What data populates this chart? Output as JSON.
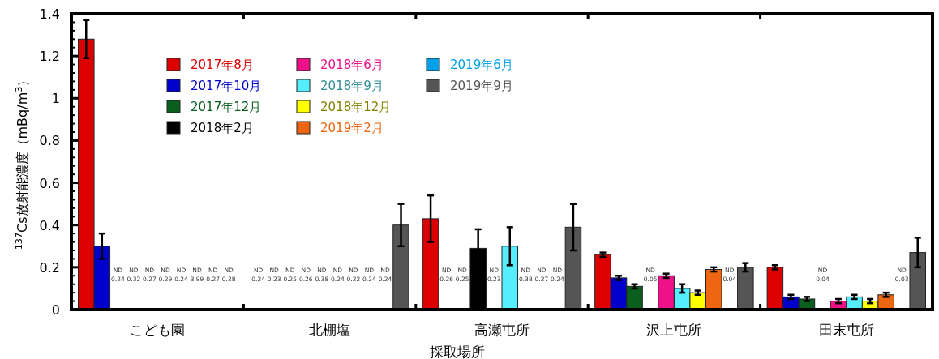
{
  "chart_data": {
    "type": "bar",
    "xlabel": "採取場所",
    "ylabel": "$^{137}$Cs放射能濃度（mBq/m$^{3}$）",
    "categories": [
      "こども園",
      "北棚塩",
      "高瀬屯所",
      "沢上屯所",
      "田末屯所"
    ],
    "ylim": [
      0,
      1.4
    ],
    "yticks": [
      0,
      0.2,
      0.4,
      0.6,
      0.8,
      1,
      1.2,
      1.4
    ],
    "legend": "top left",
    "series": [
      {
        "name": "2017年8月",
        "color": "#dd0000",
        "values": [
          1.28,
          null,
          0.43,
          0.26,
          0.2
        ],
        "errors": [
          0.09,
          null,
          0.11,
          0.01,
          0.01
        ],
        "value_labels": [
          null,
          "ND\n0.24",
          null,
          null,
          null
        ]
      },
      {
        "name": "2017年10月",
        "color": "#0000cc",
        "values": [
          0.3,
          null,
          null,
          0.15,
          0.06
        ],
        "errors": [
          0.06,
          null,
          null,
          0.01,
          0.01
        ],
        "value_labels": [
          null,
          "ND\n0.23",
          "ND\n0.26",
          null,
          null
        ]
      },
      {
        "name": "2017年12月",
        "color": "#0a5e1e",
        "values": [
          null,
          null,
          null,
          0.11,
          0.05
        ],
        "errors": [
          null,
          null,
          null,
          0.01,
          0.01
        ],
        "value_labels": [
          "ND\n0.24",
          "ND\n0.25",
          "ND\n0.25",
          null,
          null
        ]
      },
      {
        "name": "2018年2月",
        "color": "#000000",
        "values": [
          null,
          null,
          0.29,
          null,
          null
        ],
        "errors": [
          null,
          null,
          0.09,
          null,
          null
        ],
        "value_labels": [
          "ND\n0.32",
          "ND\n0.26",
          null,
          "ND\n0.05",
          "ND\n0.04"
        ]
      },
      {
        "name": "2018年6月",
        "color": "#ee1188",
        "values": [
          null,
          null,
          null,
          0.16,
          0.04
        ],
        "errors": [
          null,
          null,
          null,
          0.01,
          0.01
        ],
        "value_labels": [
          "ND\n0.27",
          "ND\n0.38",
          "ND\n0.23",
          null,
          null
        ]
      },
      {
        "name": "2018年9月",
        "color": "#55eeff",
        "values": [
          null,
          null,
          0.3,
          0.1,
          0.06
        ],
        "errors": [
          null,
          null,
          0.09,
          0.02,
          0.01
        ],
        "value_labels": [
          "ND\n0.29",
          "ND\n0.24",
          null,
          null,
          null
        ]
      },
      {
        "name": "2018年12月",
        "color": "#ffff00",
        "values": [
          null,
          null,
          null,
          0.08,
          0.04
        ],
        "errors": [
          null,
          null,
          null,
          0.01,
          0.01
        ],
        "value_labels": [
          "ND\n0.24",
          "ND\n0.22",
          "ND\n0.38",
          null,
          null
        ]
      },
      {
        "name": "2019年2月",
        "color": "#ee6611",
        "values": [
          null,
          null,
          null,
          0.19,
          0.07
        ],
        "errors": [
          null,
          null,
          null,
          0.01,
          0.01
        ],
        "value_labels": [
          "ND\n3.99",
          "ND\n0.24",
          "ND\n0.27",
          null,
          null
        ]
      },
      {
        "name": "2019年6月",
        "color": "#00a0e8",
        "values": [
          null,
          null,
          null,
          null,
          null
        ],
        "errors": [
          null,
          null,
          null,
          null,
          null
        ],
        "value_labels": [
          "ND\n0.27",
          "ND\n0.24",
          "ND\n0.24",
          "ND\n0.04",
          "ND\n0.03"
        ]
      },
      {
        "name": "2019年9月",
        "color": "#555555",
        "values": [
          null,
          0.4,
          0.39,
          0.2,
          0.27
        ],
        "errors": [
          null,
          0.1,
          0.11,
          0.02,
          0.07
        ],
        "value_labels": [
          "ND\n0.28",
          null,
          null,
          null,
          null
        ]
      }
    ]
  }
}
